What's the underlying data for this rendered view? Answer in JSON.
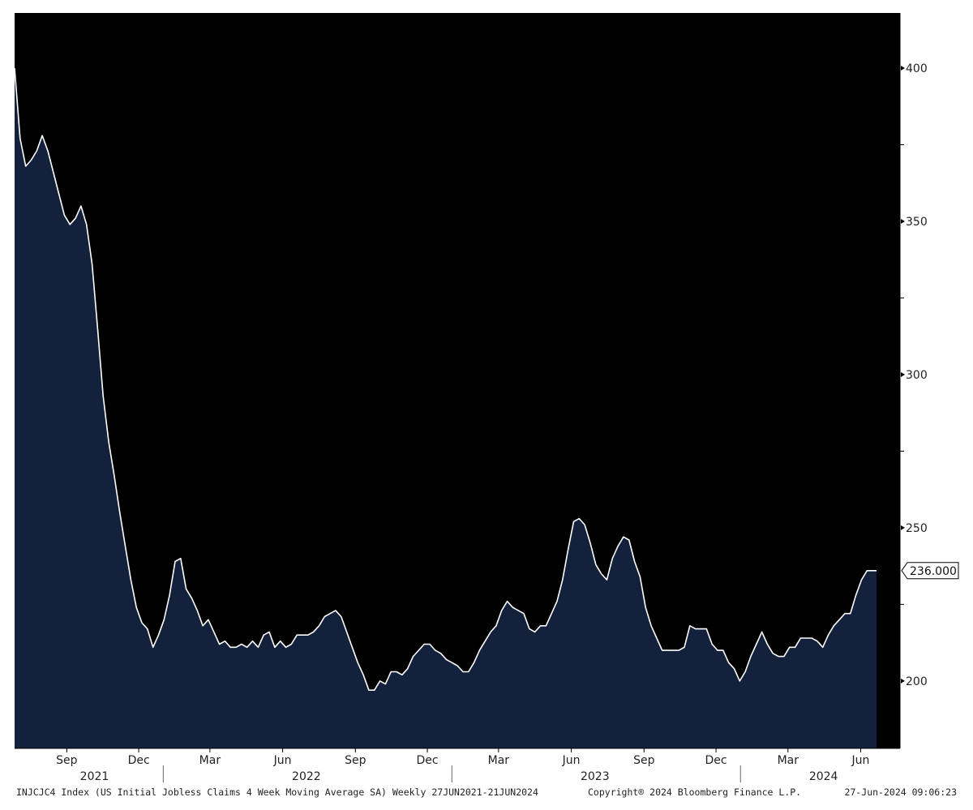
{
  "colors": {
    "plot_background": "#000000",
    "page_background": "#ffffff",
    "area_fill": "#13213d",
    "line": "#ffffff",
    "axis": "#000000"
  },
  "footer": {
    "description": "INJCJC4 Index (US Initial Jobless Claims 4 Week Moving Average SA)  Weekly 27JUN2021-21JUN2024",
    "copyright": "Copyright® 2024 Bloomberg Finance L.P.",
    "timestamp": "27-Jun-2024 09:06:23"
  },
  "chart_data": {
    "type": "area",
    "title": "",
    "xlabel": "",
    "ylabel": "",
    "x_range": [
      "2021-06-27",
      "2024-06-21"
    ],
    "ylim": [
      178,
      418
    ],
    "y_axis_side": "right",
    "y_ticks": [
      200,
      250,
      300,
      350,
      400
    ],
    "y_minor_ticks": [
      225,
      275,
      325,
      375
    ],
    "month_ticks": [
      {
        "label": "Sep",
        "date": "2021-09-01"
      },
      {
        "label": "Dec",
        "date": "2021-12-01"
      },
      {
        "label": "Mar",
        "date": "2022-03-01"
      },
      {
        "label": "Jun",
        "date": "2022-06-01"
      },
      {
        "label": "Sep",
        "date": "2022-09-01"
      },
      {
        "label": "Dec",
        "date": "2022-12-01"
      },
      {
        "label": "Mar",
        "date": "2023-03-01"
      },
      {
        "label": "Jun",
        "date": "2023-06-01"
      },
      {
        "label": "Sep",
        "date": "2023-09-01"
      },
      {
        "label": "Dec",
        "date": "2023-12-01"
      },
      {
        "label": "Mar",
        "date": "2024-03-01"
      },
      {
        "label": "Jun",
        "date": "2024-06-01"
      }
    ],
    "year_labels": [
      {
        "label": "2021",
        "date": "2021-10-06"
      },
      {
        "label": "2022",
        "date": "2022-07-01"
      },
      {
        "label": "2023",
        "date": "2023-07-01"
      },
      {
        "label": "2024",
        "date": "2024-04-15"
      }
    ],
    "year_boundaries": [
      "2022-01-01",
      "2023-01-01",
      "2024-01-01"
    ],
    "last_value_label": "236.000",
    "grid": false,
    "legend": "none",
    "series": [
      {
        "x": [
          "2021-06-27",
          "2021-07-04",
          "2021-07-11",
          "2021-07-18",
          "2021-07-25",
          "2021-08-01",
          "2021-08-08",
          "2021-08-15",
          "2021-08-22",
          "2021-08-29",
          "2021-09-05",
          "2021-09-12",
          "2021-09-19",
          "2021-09-26",
          "2021-10-03",
          "2021-10-10",
          "2021-10-17",
          "2021-10-24",
          "2021-10-31",
          "2021-11-07",
          "2021-11-14",
          "2021-11-21",
          "2021-11-28",
          "2021-12-05",
          "2021-12-12",
          "2021-12-19",
          "2021-12-26",
          "2022-01-02",
          "2022-01-09",
          "2022-01-16",
          "2022-01-23",
          "2022-01-30",
          "2022-02-06",
          "2022-02-13",
          "2022-02-20",
          "2022-02-27",
          "2022-03-06",
          "2022-03-13",
          "2022-03-20",
          "2022-03-27",
          "2022-04-03",
          "2022-04-10",
          "2022-04-17",
          "2022-04-24",
          "2022-05-01",
          "2022-05-08",
          "2022-05-15",
          "2022-05-22",
          "2022-05-29",
          "2022-06-05",
          "2022-06-12",
          "2022-06-19",
          "2022-06-26",
          "2022-07-03",
          "2022-07-10",
          "2022-07-17",
          "2022-07-24",
          "2022-07-31",
          "2022-08-07",
          "2022-08-14",
          "2022-08-21",
          "2022-08-28",
          "2022-09-04",
          "2022-09-11",
          "2022-09-18",
          "2022-09-25",
          "2022-10-02",
          "2022-10-09",
          "2022-10-16",
          "2022-10-23",
          "2022-10-30",
          "2022-11-06",
          "2022-11-13",
          "2022-11-20",
          "2022-11-27",
          "2022-12-04",
          "2022-12-11",
          "2022-12-18",
          "2022-12-25",
          "2023-01-01",
          "2023-01-08",
          "2023-01-15",
          "2023-01-22",
          "2023-01-29",
          "2023-02-05",
          "2023-02-12",
          "2023-02-19",
          "2023-02-26",
          "2023-03-05",
          "2023-03-12",
          "2023-03-19",
          "2023-03-26",
          "2023-04-02",
          "2023-04-09",
          "2023-04-16",
          "2023-04-23",
          "2023-04-30",
          "2023-05-07",
          "2023-05-14",
          "2023-05-21",
          "2023-05-28",
          "2023-06-04",
          "2023-06-11",
          "2023-06-18",
          "2023-06-25",
          "2023-07-02",
          "2023-07-09",
          "2023-07-16",
          "2023-07-23",
          "2023-07-30",
          "2023-08-06",
          "2023-08-13",
          "2023-08-20",
          "2023-08-27",
          "2023-09-03",
          "2023-09-10",
          "2023-09-17",
          "2023-09-24",
          "2023-10-01",
          "2023-10-08",
          "2023-10-15",
          "2023-10-22",
          "2023-10-29",
          "2023-11-05",
          "2023-11-12",
          "2023-11-19",
          "2023-11-26",
          "2023-12-03",
          "2023-12-10",
          "2023-12-17",
          "2023-12-24",
          "2023-12-31",
          "2024-01-07",
          "2024-01-14",
          "2024-01-21",
          "2024-01-28",
          "2024-02-04",
          "2024-02-11",
          "2024-02-18",
          "2024-02-25",
          "2024-03-03",
          "2024-03-10",
          "2024-03-17",
          "2024-03-24",
          "2024-03-31",
          "2024-04-07",
          "2024-04-14",
          "2024-04-21",
          "2024-04-28",
          "2024-05-05",
          "2024-05-12",
          "2024-05-19",
          "2024-05-26",
          "2024-06-02",
          "2024-06-09",
          "2024-06-16",
          "2024-06-21"
        ],
        "y": [
          400,
          377,
          368,
          370,
          373,
          378,
          373,
          366,
          359,
          352,
          349,
          351,
          355,
          349,
          336,
          315,
          293,
          278,
          267,
          255,
          244,
          233,
          224,
          219,
          217,
          211,
          215,
          220,
          228,
          239,
          240,
          230,
          227,
          223,
          218,
          220,
          216,
          212,
          213,
          211,
          211,
          212,
          211,
          213,
          211,
          215,
          216,
          211,
          213,
          211,
          212,
          215,
          215,
          215,
          216,
          218,
          221,
          222,
          223,
          221,
          216,
          211,
          206,
          202,
          197,
          197,
          200,
          199,
          203,
          203,
          202,
          204,
          208,
          210,
          212,
          212,
          210,
          209,
          207,
          206,
          205,
          203,
          203,
          206,
          210,
          213,
          216,
          218,
          223,
          226,
          224,
          223,
          222,
          217,
          216,
          218,
          218,
          222,
          226,
          233,
          243,
          252,
          253,
          251,
          245,
          238,
          235,
          233,
          240,
          244,
          247,
          246,
          239,
          234,
          224,
          218,
          214,
          210,
          210,
          210,
          210,
          211,
          218,
          217,
          217,
          217,
          212,
          210,
          210,
          206,
          204,
          200,
          203,
          208,
          212,
          216,
          212,
          209,
          208,
          208,
          211,
          211,
          214,
          214,
          214,
          213,
          211,
          215,
          218,
          220,
          222,
          222,
          228,
          233,
          236,
          236,
          236
        ]
      }
    ]
  }
}
